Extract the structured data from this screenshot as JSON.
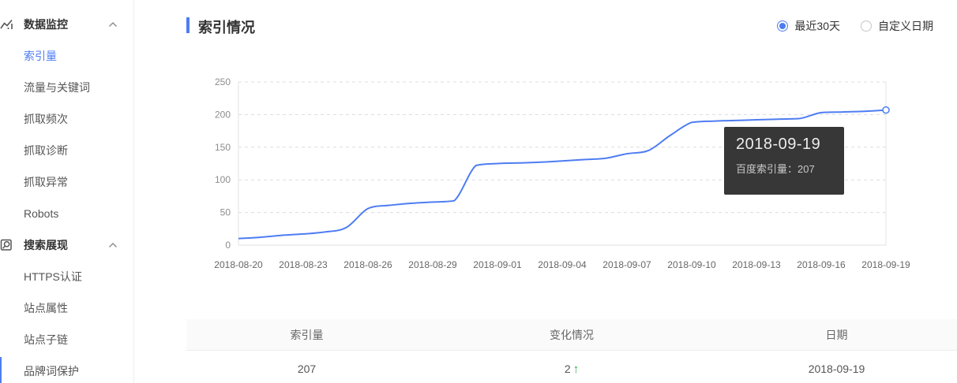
{
  "sidebar": {
    "sections": [
      {
        "label": "数据监控",
        "items": [
          {
            "label": "索引量",
            "active": true
          },
          {
            "label": "流量与关键词",
            "active": false
          },
          {
            "label": "抓取频次",
            "active": false
          },
          {
            "label": "抓取诊断",
            "active": false
          },
          {
            "label": "抓取异常",
            "active": false
          },
          {
            "label": "Robots",
            "active": false
          }
        ]
      },
      {
        "label": "搜索展现",
        "items": [
          {
            "label": "HTTPS认证",
            "active": false
          },
          {
            "label": "站点属性",
            "active": false
          },
          {
            "label": "站点子链",
            "active": false
          },
          {
            "label": "品牌词保护",
            "active": false
          }
        ]
      }
    ]
  },
  "panel": {
    "title": "索引情况",
    "date_range": {
      "options": [
        {
          "label": "最近30天",
          "selected": true
        },
        {
          "label": "自定义日期",
          "selected": false
        }
      ]
    }
  },
  "chart_data": {
    "type": "line",
    "title": "索引情况",
    "series_name": "百度索引量",
    "x": [
      "2018-08-20",
      "2018-08-21",
      "2018-08-22",
      "2018-08-23",
      "2018-08-24",
      "2018-08-25",
      "2018-08-26",
      "2018-08-27",
      "2018-08-28",
      "2018-08-29",
      "2018-08-30",
      "2018-08-31",
      "2018-09-01",
      "2018-09-02",
      "2018-09-03",
      "2018-09-04",
      "2018-09-05",
      "2018-09-06",
      "2018-09-07",
      "2018-09-08",
      "2018-09-09",
      "2018-09-10",
      "2018-09-11",
      "2018-09-12",
      "2018-09-13",
      "2018-09-14",
      "2018-09-15",
      "2018-09-16",
      "2018-09-17",
      "2018-09-18",
      "2018-09-19"
    ],
    "values": [
      10,
      12,
      15,
      17,
      20,
      27,
      56,
      61,
      64,
      66,
      68,
      122,
      125,
      126,
      127,
      129,
      131,
      133,
      140,
      145,
      168,
      188,
      190,
      191,
      192,
      193,
      194,
      203,
      204,
      205,
      207
    ],
    "x_tick_labels": [
      "2018-08-20",
      "2018-08-23",
      "2018-08-26",
      "2018-08-29",
      "2018-09-01",
      "2018-09-04",
      "2018-09-07",
      "2018-09-10",
      "2018-09-13",
      "2018-09-16",
      "2018-09-19"
    ],
    "y_ticks": [
      0,
      50,
      100,
      150,
      200,
      250
    ],
    "ylim": [
      0,
      250
    ],
    "grid": true,
    "line_color": "#4e7df2",
    "hovered_point": {
      "date": "2018-09-19",
      "value": 207
    }
  },
  "tooltip": {
    "title": "2018-09-19",
    "body": "百度索引量：207"
  },
  "table": {
    "headers": [
      "索引量",
      "变化情况",
      "日期"
    ],
    "up_arrow": "↑",
    "rows": [
      {
        "index": "207",
        "change": "2",
        "change_dir": "up",
        "date": "2018-09-19"
      }
    ]
  },
  "colors": {
    "accent_blue": "#4e7df2",
    "up_green": "#2fab4f",
    "tooltip_bg": "#373737"
  }
}
